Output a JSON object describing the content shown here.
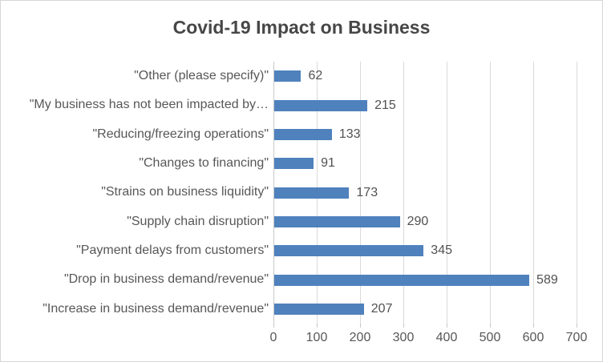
{
  "chart_data": {
    "type": "bar",
    "orientation": "horizontal",
    "title": "Covid-19 Impact on Business",
    "categories": [
      "\"Other (please specify)\"",
      "\"My business has not been impacted by…",
      "\"Reducing/freezing operations\"",
      "\"Changes to financing\"",
      "\"Strains on business liquidity\"",
      "\"Supply chain disruption\"",
      "\"Payment delays from customers\"",
      "\"Drop in business demand/revenue\"",
      "\"Increase in business demand/revenue\""
    ],
    "values": [
      62,
      215,
      133,
      91,
      173,
      290,
      345,
      589,
      207
    ],
    "data_labels": [
      "62",
      "215",
      "133",
      "91",
      "173",
      "290",
      "345",
      "589",
      "207"
    ],
    "xlim": [
      0,
      700
    ],
    "xticks": [
      0,
      100,
      200,
      300,
      400,
      500,
      600,
      700
    ],
    "xtick_labels": [
      "0",
      "100",
      "200",
      "300",
      "400",
      "500",
      "600",
      "700"
    ],
    "xlabel": "",
    "ylabel": "",
    "legend": false,
    "grid": true,
    "colors": {
      "bar": "#4f81bd",
      "gridline": "#d9d9d9",
      "axis_line": "#c9c9c9",
      "title_text": "#474747",
      "label_text": "#575757",
      "background": "#ffffff",
      "border": "#d6d6d6"
    }
  }
}
